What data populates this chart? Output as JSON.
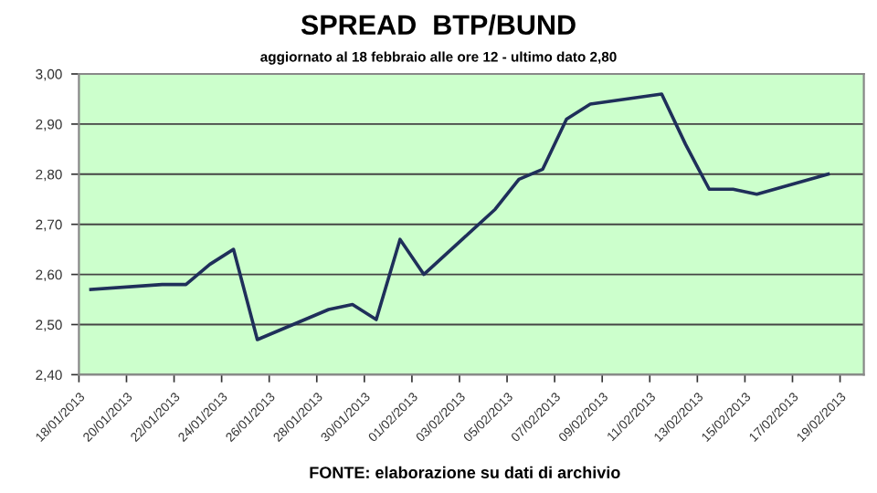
{
  "chart_data": {
    "type": "line",
    "title": "SPREAD  BTP/BUND",
    "subtitle": "aggiornato al 18 febbraio alle ore 12 - ultimo dato 2,80",
    "x": [
      "2013-01-18T12:00",
      "2013-01-21T12:00",
      "2013-01-22T12:00",
      "2013-01-23T12:00",
      "2013-01-24T12:00",
      "2013-01-25T12:00",
      "2013-01-28T12:00",
      "2013-01-29T12:00",
      "2013-01-30T12:00",
      "2013-01-31T12:00",
      "2013-02-01T12:00",
      "2013-02-04T12:00",
      "2013-02-05T12:00",
      "2013-02-06T12:00",
      "2013-02-07T12:00",
      "2013-02-08T12:00",
      "2013-02-11T12:00",
      "2013-02-12T12:00",
      "2013-02-13T12:00",
      "2013-02-14T12:00",
      "2013-02-15T12:00",
      "2013-02-18T12:00"
    ],
    "series": [
      {
        "color": "#1f2f5a",
        "values": [
          2.57,
          2.58,
          2.58,
          2.62,
          2.65,
          2.47,
          2.53,
          2.54,
          2.51,
          2.67,
          2.6,
          2.73,
          2.79,
          2.81,
          2.91,
          2.94,
          2.96,
          2.86,
          2.77,
          2.77,
          2.76,
          2.8
        ]
      }
    ],
    "xlim": [
      "2013-01-18",
      "2013-02-20"
    ],
    "xticks": [
      {
        "value": "2013-01-18",
        "label": "18/01/2013"
      },
      {
        "value": "2013-01-20",
        "label": "20/01/2013"
      },
      {
        "value": "2013-01-22",
        "label": "22/01/2013"
      },
      {
        "value": "2013-01-24",
        "label": "24/01/2013"
      },
      {
        "value": "2013-01-26",
        "label": "26/01/2013"
      },
      {
        "value": "2013-01-28",
        "label": "28/01/2013"
      },
      {
        "value": "2013-01-30",
        "label": "30/01/2013"
      },
      {
        "value": "2013-02-01",
        "label": "01/02/2013"
      },
      {
        "value": "2013-02-03",
        "label": "03/02/2013"
      },
      {
        "value": "2013-02-05",
        "label": "05/02/2013"
      },
      {
        "value": "2013-02-07",
        "label": "07/02/2013"
      },
      {
        "value": "2013-02-09",
        "label": "09/02/2013"
      },
      {
        "value": "2013-02-11",
        "label": "11/02/2013"
      },
      {
        "value": "2013-02-13",
        "label": "13/02/2013"
      },
      {
        "value": "2013-02-15",
        "label": "15/02/2013"
      },
      {
        "value": "2013-02-17",
        "label": "17/02/2013"
      },
      {
        "value": "2013-02-19",
        "label": "19/02/2013"
      }
    ],
    "ylim": [
      2.4,
      3.0
    ],
    "yticks": [
      {
        "value": 2.4,
        "label": "2,40"
      },
      {
        "value": 2.5,
        "label": "2,50"
      },
      {
        "value": 2.6,
        "label": "2,60"
      },
      {
        "value": 2.7,
        "label": "2,70"
      },
      {
        "value": 2.8,
        "label": "2,80"
      },
      {
        "value": 2.9,
        "label": "2,90"
      },
      {
        "value": 3.0,
        "label": "3,00"
      }
    ],
    "grid": "y",
    "marker": "none",
    "line_style": "solid",
    "legend": false,
    "annotations": [
      "FONTE: elaborazione su dati di archivio"
    ]
  }
}
